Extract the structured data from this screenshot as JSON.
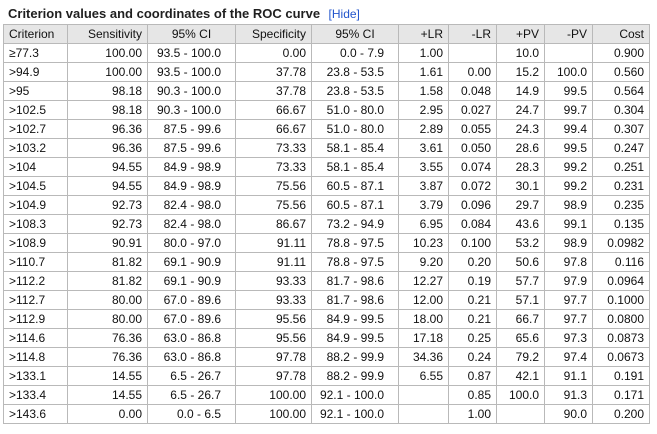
{
  "header": {
    "title": "Criterion values and coordinates of the ROC curve",
    "hide_link": "[Hide]"
  },
  "table": {
    "columns": [
      "Criterion",
      "Sensitivity",
      "95% CI",
      "Specificity",
      "95% CI",
      "+LR",
      "-LR",
      "+PV",
      "-PV",
      "Cost"
    ],
    "rows": [
      [
        "≥77.3",
        "100.00",
        "93.5 - 100.0",
        "0.00",
        "0.0 - 7.9",
        "1.00",
        "",
        "10.0",
        "",
        "0.900"
      ],
      [
        ">94.9",
        "100.00",
        "93.5 - 100.0",
        "37.78",
        "23.8 - 53.5",
        "1.61",
        "0.00",
        "15.2",
        "100.0",
        "0.560"
      ],
      [
        ">95",
        "98.18",
        "90.3 - 100.0",
        "37.78",
        "23.8 - 53.5",
        "1.58",
        "0.048",
        "14.9",
        "99.5",
        "0.564"
      ],
      [
        ">102.5",
        "98.18",
        "90.3 - 100.0",
        "66.67",
        "51.0 - 80.0",
        "2.95",
        "0.027",
        "24.7",
        "99.7",
        "0.304"
      ],
      [
        ">102.7",
        "96.36",
        "87.5 - 99.6",
        "66.67",
        "51.0 - 80.0",
        "2.89",
        "0.055",
        "24.3",
        "99.4",
        "0.307"
      ],
      [
        ">103.2",
        "96.36",
        "87.5 - 99.6",
        "73.33",
        "58.1 - 85.4",
        "3.61",
        "0.050",
        "28.6",
        "99.5",
        "0.247"
      ],
      [
        ">104",
        "94.55",
        "84.9 - 98.9",
        "73.33",
        "58.1 - 85.4",
        "3.55",
        "0.074",
        "28.3",
        "99.2",
        "0.251"
      ],
      [
        ">104.5",
        "94.55",
        "84.9 - 98.9",
        "75.56",
        "60.5 - 87.1",
        "3.87",
        "0.072",
        "30.1",
        "99.2",
        "0.231"
      ],
      [
        ">104.9",
        "92.73",
        "82.4 - 98.0",
        "75.56",
        "60.5 - 87.1",
        "3.79",
        "0.096",
        "29.7",
        "98.9",
        "0.235"
      ],
      [
        ">108.3",
        "92.73",
        "82.4 - 98.0",
        "86.67",
        "73.2 - 94.9",
        "6.95",
        "0.084",
        "43.6",
        "99.1",
        "0.135"
      ],
      [
        ">108.9",
        "90.91",
        "80.0 - 97.0",
        "91.11",
        "78.8 - 97.5",
        "10.23",
        "0.100",
        "53.2",
        "98.9",
        "0.0982"
      ],
      [
        ">110.7",
        "81.82",
        "69.1 - 90.9",
        "91.11",
        "78.8 - 97.5",
        "9.20",
        "0.20",
        "50.6",
        "97.8",
        "0.116"
      ],
      [
        ">112.2",
        "81.82",
        "69.1 - 90.9",
        "93.33",
        "81.7 - 98.6",
        "12.27",
        "0.19",
        "57.7",
        "97.9",
        "0.0964"
      ],
      [
        ">112.7",
        "80.00",
        "67.0 - 89.6",
        "93.33",
        "81.7 - 98.6",
        "12.00",
        "0.21",
        "57.1",
        "97.7",
        "0.1000"
      ],
      [
        ">112.9",
        "80.00",
        "67.0 - 89.6",
        "95.56",
        "84.9 - 99.5",
        "18.00",
        "0.21",
        "66.7",
        "97.7",
        "0.0800"
      ],
      [
        ">114.6",
        "76.36",
        "63.0 - 86.8",
        "95.56",
        "84.9 - 99.5",
        "17.18",
        "0.25",
        "65.6",
        "97.3",
        "0.0873"
      ],
      [
        ">114.8",
        "76.36",
        "63.0 - 86.8",
        "97.78",
        "88.2 - 99.9",
        "34.36",
        "0.24",
        "79.2",
        "97.4",
        "0.0673"
      ],
      [
        ">133.1",
        "14.55",
        "6.5 - 26.7",
        "97.78",
        "88.2 - 99.9",
        "6.55",
        "0.87",
        "42.1",
        "91.1",
        "0.191"
      ],
      [
        ">133.4",
        "14.55",
        "6.5 - 26.7",
        "100.00",
        "92.1 - 100.0",
        "",
        "0.85",
        "100.0",
        "91.3",
        "0.171"
      ],
      [
        ">143.6",
        "0.00",
        "0.0 - 6.5",
        "100.00",
        "92.1 - 100.0",
        "",
        "1.00",
        "",
        "90.0",
        "0.200"
      ]
    ]
  }
}
